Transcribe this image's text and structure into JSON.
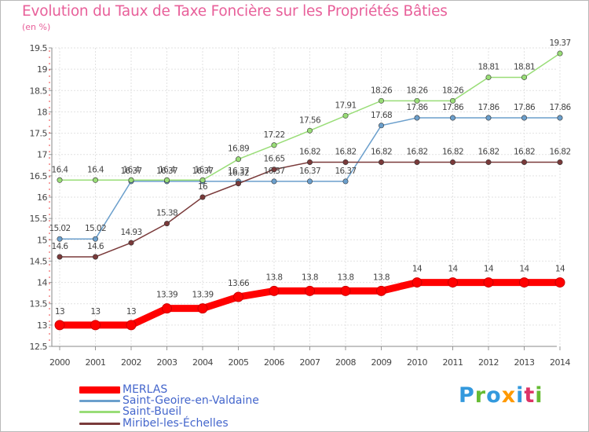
{
  "title": "Evolution du Taux de Taxe Foncière sur les Propriétés Bâties",
  "unit": "(en %)",
  "logo": {
    "text": "Proxiti",
    "colors": [
      "#3399dd",
      "#66bb33",
      "#3399dd",
      "#ff9900",
      "#3399dd",
      "#dd3366",
      "#66bb33"
    ]
  },
  "chart_data": {
    "type": "line",
    "title": "Evolution du Taux de Taxe Foncière sur les Propriétés Bâties",
    "ylabel": "(en %)",
    "xlabel": "",
    "x": [
      "2000",
      "2001",
      "2002",
      "2003",
      "2004",
      "2005",
      "2006",
      "2007",
      "2008",
      "2009",
      "2010",
      "2011",
      "2012",
      "2013",
      "2014"
    ],
    "ylim": [
      12.5,
      19.5
    ],
    "yticks": [
      "12.5",
      "13",
      "13.5",
      "14",
      "14.5",
      "15",
      "15.5",
      "16",
      "16.5",
      "17",
      "17.5",
      "18",
      "18.5",
      "19",
      "19.5"
    ],
    "grid": true,
    "legend_position": "bottom-left",
    "series": [
      {
        "name": "MERLAS",
        "color": "#ff0000",
        "emphasis": true,
        "values": [
          13,
          13,
          13,
          13.39,
          13.39,
          13.66,
          13.8,
          13.8,
          13.8,
          13.8,
          14,
          14,
          14,
          14,
          14
        ],
        "labels": [
          "13",
          "13",
          "13",
          "13.39",
          "13.39",
          "13.66",
          "13.8",
          "13.8",
          "13.8",
          "13.8",
          "14",
          "14",
          "14",
          "14",
          "14"
        ]
      },
      {
        "name": "Saint-Geoire-en-Valdaine",
        "color": "#6b9fcc",
        "values": [
          15.02,
          15.02,
          16.37,
          16.37,
          16.37,
          16.37,
          16.37,
          16.37,
          16.37,
          17.68,
          17.86,
          17.86,
          17.86,
          17.86,
          17.86
        ],
        "labels": [
          "15.02",
          "15.02",
          "16.37",
          "16.37",
          "16.37",
          "16.37",
          "16.37",
          "16.37",
          "16.37",
          "17.68",
          "17.86",
          "17.86",
          "17.86",
          "17.86",
          "17.86"
        ]
      },
      {
        "name": "Saint-Bueil",
        "color": "#99dd77",
        "values": [
          16.4,
          16.4,
          16.4,
          16.4,
          16.4,
          16.89,
          17.22,
          17.56,
          17.91,
          18.26,
          18.26,
          18.26,
          18.81,
          18.81,
          19.37
        ],
        "labels": [
          "16.4",
          "16.4",
          "16.4",
          "16.4",
          "16.4",
          "16.89",
          "17.22",
          "17.56",
          "17.91",
          "18.26",
          "18.26",
          "18.26",
          "18.81",
          "18.81",
          "19.37"
        ]
      },
      {
        "name": "Miribel-les-Échelles",
        "color": "#7a3a3a",
        "values": [
          14.6,
          14.6,
          14.93,
          15.38,
          16,
          16.32,
          16.65,
          16.82,
          16.82,
          16.82,
          16.82,
          16.82,
          16.82,
          16.82,
          16.82
        ],
        "labels": [
          "14.6",
          "14.6",
          "14.93",
          "15.38",
          "16",
          "16.32",
          "16.65",
          "16.82",
          "16.82",
          "16.82",
          "16.82",
          "16.82",
          "16.82",
          "16.82",
          "16.82"
        ]
      }
    ]
  }
}
